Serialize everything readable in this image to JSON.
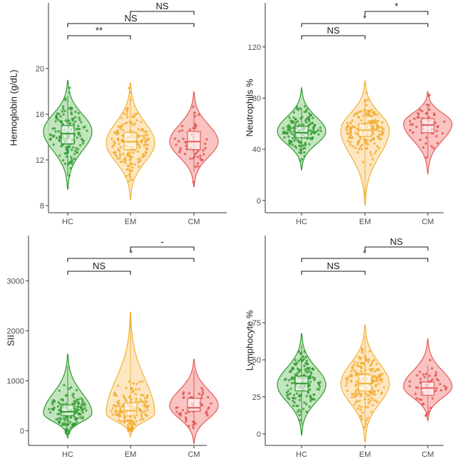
{
  "groups": [
    "HC",
    "EM",
    "CM"
  ],
  "colors": {
    "HC": {
      "line": "#2e9a2e",
      "fill": "#b9e0b3",
      "point": "#2e9a2e"
    },
    "EM": {
      "line": "#f2b134",
      "fill": "#fde3b8",
      "point": "#f2a92a"
    },
    "CM": {
      "line": "#e65a5a",
      "fill": "#f7b9b5",
      "point": "#e04b4b"
    }
  },
  "chart_data": [
    {
      "type": "violin",
      "panel": "top-left",
      "ylabel": "Hemoglobin (g/dL)",
      "ylim": [
        8,
        22
      ],
      "yticks": [
        8,
        12,
        16,
        20
      ],
      "categories": [
        "HC",
        "EM",
        "CM"
      ],
      "series": [
        {
          "name": "HC",
          "range": [
            9.4,
            19.0
          ],
          "mode": 14.5,
          "q1": 13.4,
          "median": 14.3,
          "q3": 15.0,
          "whisker": [
            10.6,
            17.6
          ],
          "n": 150
        },
        {
          "name": "EM",
          "range": [
            8.5,
            18.8
          ],
          "mode": 13.5,
          "q1": 12.9,
          "median": 13.6,
          "q3": 14.4,
          "whisker": [
            10.2,
            17.6
          ],
          "n": 170
        },
        {
          "name": "CM",
          "range": [
            9.6,
            18.0
          ],
          "mode": 13.6,
          "q1": 12.9,
          "median": 13.6,
          "q3": 14.5,
          "whisker": [
            11.0,
            16.2
          ],
          "n": 50
        }
      ],
      "comparisons": [
        {
          "groups": [
            "HC",
            "EM"
          ],
          "label": "**"
        },
        {
          "groups": [
            "HC",
            "CM"
          ],
          "label": "NS"
        },
        {
          "groups": [
            "EM",
            "CM"
          ],
          "label": "NS"
        }
      ]
    },
    {
      "type": "violin",
      "panel": "top-right",
      "ylabel": "Neutrophils %",
      "ylim": [
        -4,
        121
      ],
      "yticks": [
        0,
        40,
        80,
        120
      ],
      "categories": [
        "HC",
        "EM",
        "CM"
      ],
      "series": [
        {
          "name": "HC",
          "range": [
            24,
            88
          ],
          "mode": 54,
          "q1": 49,
          "median": 53,
          "q3": 58,
          "whisker": [
            36,
            72
          ],
          "n": 150
        },
        {
          "name": "EM",
          "range": [
            -4,
            94
          ],
          "mode": 55,
          "q1": 50,
          "median": 55,
          "q3": 60,
          "whisker": [
            2,
            80
          ],
          "n": 170
        },
        {
          "name": "CM",
          "range": [
            21,
            85
          ],
          "mode": 60,
          "q1": 53,
          "median": 59,
          "q3": 64,
          "whisker": [
            33,
            74
          ],
          "n": 50
        }
      ],
      "comparisons": [
        {
          "groups": [
            "HC",
            "EM"
          ],
          "label": "NS"
        },
        {
          "groups": [
            "HC",
            "CM"
          ],
          "label": "*"
        },
        {
          "groups": [
            "EM",
            "CM"
          ],
          "label": "*"
        }
      ]
    },
    {
      "type": "violin",
      "panel": "bottom-left",
      "ylabel": "SII",
      "ylim": [
        -150,
        3050
      ],
      "yticks": [
        0,
        1000,
        2000,
        3000
      ],
      "categories": [
        "HC",
        "EM",
        "CM"
      ],
      "series": [
        {
          "name": "HC",
          "range": [
            -140,
            1540
          ],
          "mode": 350,
          "q1": 300,
          "median": 380,
          "q3": 520,
          "whisker": [
            100,
            1300
          ],
          "n": 150
        },
        {
          "name": "EM",
          "range": [
            -120,
            2380
          ],
          "mode": 350,
          "q1": 300,
          "median": 400,
          "q3": 560,
          "whisker": [
            100,
            2300
          ],
          "n": 170
        },
        {
          "name": "CM",
          "range": [
            -260,
            1440
          ],
          "mode": 500,
          "q1": 390,
          "median": 460,
          "q3": 650,
          "whisker": [
            100,
            1200
          ],
          "n": 50
        }
      ],
      "comparisons": [
        {
          "groups": [
            "HC",
            "EM"
          ],
          "label": "NS"
        },
        {
          "groups": [
            "HC",
            "CM"
          ],
          "label": "*"
        },
        {
          "groups": [
            "EM",
            "CM"
          ],
          "label": "-"
        }
      ]
    },
    {
      "type": "violin",
      "panel": "bottom-right",
      "ylabel": "Lymphocyte %",
      "ylim": [
        -3,
        105
      ],
      "yticks": [
        0,
        25,
        50,
        75
      ],
      "categories": [
        "HC",
        "EM",
        "CM"
      ],
      "series": [
        {
          "name": "HC",
          "range": [
            -1,
            68
          ],
          "mode": 33,
          "q1": 29,
          "median": 34,
          "q3": 39,
          "whisker": [
            6,
            60
          ],
          "n": 150
        },
        {
          "name": "EM",
          "range": [
            -6,
            74
          ],
          "mode": 34,
          "q1": 29,
          "median": 34,
          "q3": 40,
          "whisker": [
            2,
            66
          ],
          "n": 170
        },
        {
          "name": "CM",
          "range": [
            9,
            64
          ],
          "mode": 32,
          "q1": 26,
          "median": 31,
          "q3": 35,
          "whisker": [
            16,
            46
          ],
          "n": 50
        }
      ],
      "comparisons": [
        {
          "groups": [
            "HC",
            "EM"
          ],
          "label": "NS"
        },
        {
          "groups": [
            "HC",
            "CM"
          ],
          "label": "*"
        },
        {
          "groups": [
            "EM",
            "CM"
          ],
          "label": "NS"
        }
      ]
    }
  ]
}
